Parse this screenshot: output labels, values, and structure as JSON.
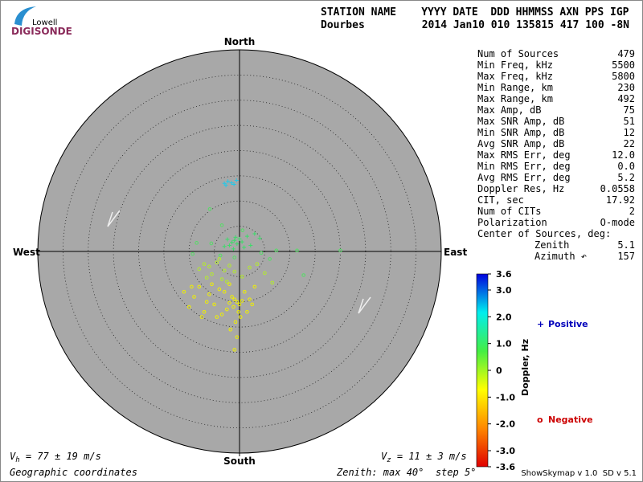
{
  "header": {
    "logo_top": "Lowell",
    "logo_bottom": "DIGISONDE",
    "columns": "STATION NAME    YYYY DATE  DDD HHMMSS AXN PPS IGP",
    "station": "Dourbes",
    "record": "2014 Jan10 010 135815 417 100 -8N"
  },
  "stats": {
    "rows": [
      [
        "Num of Sources",
        "479"
      ],
      [
        "Min Freq, kHz",
        "5500"
      ],
      [
        "Max Freq, kHz",
        "5800"
      ],
      [
        "Min Range, km",
        "230"
      ],
      [
        "Max Range, km",
        "492"
      ],
      [
        "Max Amp, dB",
        "75"
      ],
      [
        "Max SNR Amp, dB",
        "51"
      ],
      [
        "Min SNR Amp, dB",
        "12"
      ],
      [
        "Avg SNR Amp, dB",
        "22"
      ],
      [
        "Max RMS Err, deg",
        "12.0"
      ],
      [
        "Min RMS Err, deg",
        "0.0"
      ],
      [
        "Avg RMS Err, deg",
        "5.2"
      ],
      [
        "Doppler Res, Hz",
        "0.0558"
      ],
      [
        "CIT, sec",
        "17.92"
      ],
      [
        "Num of CITs",
        "2"
      ],
      [
        "Polarization",
        "O-mode"
      ]
    ],
    "center_title": "Center of Sources, deg:",
    "center": [
      [
        "Zenith",
        "5.1"
      ],
      [
        "Azimuth ↶",
        "157"
      ]
    ]
  },
  "footer": {
    "vh": [
      "V",
      "h",
      " = 77 ± 19 m/s"
    ],
    "vz": [
      "V",
      "z",
      " = 11 ± 3 m/s"
    ],
    "coords": "Geographic coordinates",
    "zenith": "Zenith: max 40°  step 5°",
    "version": "ShowSkymap v 1.0  SD v 5.1"
  },
  "chart_data": {
    "type": "polar-scatter",
    "directions": {
      "north": "North",
      "south": "South",
      "east": "East",
      "west": "West"
    },
    "xlim": [
      -40,
      40
    ],
    "ylim": [
      -40,
      40
    ],
    "rticks": [
      5,
      10,
      15,
      20,
      25,
      30,
      35
    ],
    "background": "#a8a8a8",
    "series": [
      {
        "color": "#22c8e8",
        "marker": "plus",
        "x": [
          -3,
          -2.3,
          -1.6,
          -0.6,
          -2.7,
          -1.1
        ],
        "values": [
          13.5,
          13.9,
          13.6,
          14.1,
          13.1,
          13.3
        ]
      },
      {
        "color": "#3ddc6a",
        "marker": "plus",
        "x": [
          -1.5,
          -1,
          -0.5,
          0,
          -2,
          -0.8,
          0.5,
          1.5,
          3,
          4,
          -3,
          -1.2,
          2.2,
          -2.4,
          0.9
        ],
        "values": [
          1.8,
          2.2,
          1.5,
          2.5,
          1.2,
          2.8,
          1.9,
          3,
          3.5,
          2.6,
          1,
          0.5,
          1.2,
          2.4,
          0.8
        ]
      },
      {
        "color": "#55dd66",
        "marker": "circle",
        "x": [
          -5.9,
          -3.5,
          -8.5,
          -9.3,
          -5.6,
          7.3,
          11.4,
          12.7,
          6,
          4.3,
          20,
          -1,
          -3.8,
          0.6
        ],
        "values": [
          8.4,
          5.2,
          1.7,
          -0.5,
          1.6,
          0.2,
          0.2,
          -4.7,
          -1.5,
          -0.3,
          0.2,
          -1.2,
          -0.8,
          4.2
        ]
      },
      {
        "color": "#b4ec2c",
        "marker": "circle",
        "x": [
          -7,
          -6,
          -4.5,
          -3,
          -2,
          -5.5,
          -8,
          -1,
          2,
          3.5,
          5,
          -3.5,
          -6.5,
          -4,
          0.5,
          6.5,
          -2.5
        ],
        "values": [
          -2.5,
          -3,
          -2.2,
          -3.8,
          -2.8,
          -4.5,
          -3.5,
          -4,
          -3.2,
          -2.5,
          -4.3,
          -5.5,
          -5.2,
          -1.5,
          -5,
          -6.2,
          -6
        ]
      },
      {
        "color": "#f0f000",
        "marker": "circle",
        "x": [
          -1,
          -0.5,
          0,
          -1.5,
          -2,
          0.5,
          -1.2,
          -0.2,
          -3,
          -4,
          -6,
          -8,
          -9,
          -5,
          -2.5,
          1,
          2,
          3,
          -7,
          -10,
          -4.5,
          -0.8,
          0.2,
          -1.8,
          -3.5,
          -6.5,
          1.5,
          -0.5,
          -1,
          2.5,
          -2,
          -11,
          -9.5,
          -7.5,
          -5.5
        ],
        "values": [
          -9.5,
          -10,
          -10.5,
          -9,
          -10.2,
          -9.8,
          -11,
          -12,
          -8,
          -7.5,
          -8.5,
          -7,
          -9,
          -10.5,
          -11.5,
          -8,
          -9.5,
          -7,
          -12,
          -11,
          -13,
          -14,
          -13,
          -15.5,
          -12.5,
          -10,
          -12,
          -17,
          -19.5,
          -10.5,
          -6.5,
          -8,
          -7,
          -13,
          -6.5
        ]
      }
    ],
    "colorbar": {
      "label": "Doppler, Hz",
      "lim": [
        -3.6,
        3.6
      ],
      "colors": [
        "#e00000",
        "#ff8800",
        "#ffff00",
        "#44ee44",
        "#00eeee",
        "#0000dd"
      ],
      "ticks": [
        3.6,
        {
          "value": 3,
          "label": "3.0"
        },
        {
          "value": 2,
          "label": "2.0"
        },
        {
          "value": 1,
          "label": "1.0"
        },
        0,
        {
          "value": -1,
          "label": "-1.0"
        },
        {
          "value": -2,
          "label": "-2.0"
        },
        {
          "value": -3,
          "label": "-3.0"
        },
        -3.6
      ]
    },
    "legend": [
      {
        "symbol": "+",
        "label": "Positive",
        "color": "#0000bb"
      },
      {
        "symbol": "o",
        "label": "Negative",
        "color": "#cc0000"
      }
    ]
  }
}
